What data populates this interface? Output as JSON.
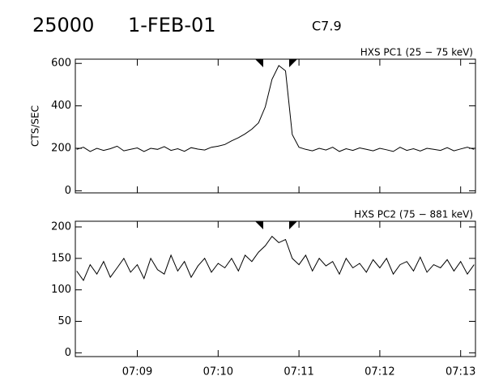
{
  "header": {
    "id": "25000",
    "date": "1-FEB-01",
    "class": "C7.9"
  },
  "chart_data": [
    {
      "type": "line",
      "title": "HXS PC1 (25 − 75 keV)",
      "y_label": "CTS/SEC",
      "color": "#000000",
      "x": [
        "07:08:15",
        "07:08:20",
        "07:08:25",
        "07:08:30",
        "07:08:35",
        "07:08:40",
        "07:08:45",
        "07:08:50",
        "07:08:55",
        "07:09:00",
        "07:09:05",
        "07:09:10",
        "07:09:15",
        "07:09:20",
        "07:09:25",
        "07:09:30",
        "07:09:35",
        "07:09:40",
        "07:09:45",
        "07:09:50",
        "07:09:55",
        "07:10:00",
        "07:10:05",
        "07:10:10",
        "07:10:15",
        "07:10:20",
        "07:10:25",
        "07:10:30",
        "07:10:35",
        "07:10:40",
        "07:10:45",
        "07:10:50",
        "07:10:55",
        "07:11:00",
        "07:11:05",
        "07:11:10",
        "07:11:15",
        "07:11:20",
        "07:11:25",
        "07:11:30",
        "07:11:35",
        "07:11:40",
        "07:11:45",
        "07:11:50",
        "07:11:55",
        "07:12:00",
        "07:12:05",
        "07:12:10",
        "07:12:15",
        "07:12:20",
        "07:12:25",
        "07:12:30",
        "07:12:35",
        "07:12:40",
        "07:12:45",
        "07:12:50",
        "07:12:55",
        "07:13:00",
        "07:13:05",
        "07:13:10"
      ],
      "values": [
        195,
        205,
        185,
        200,
        190,
        198,
        210,
        188,
        195,
        202,
        185,
        200,
        195,
        208,
        190,
        198,
        186,
        203,
        196,
        192,
        205,
        210,
        218,
        235,
        250,
        268,
        290,
        320,
        395,
        525,
        590,
        565,
        265,
        205,
        195,
        188,
        200,
        192,
        205,
        185,
        198,
        190,
        202,
        195,
        188,
        200,
        193,
        185,
        205,
        190,
        198,
        187,
        200,
        195,
        190,
        203,
        188,
        197,
        205,
        195
      ],
      "xlim": [
        "07:08:14",
        "07:13:11"
      ],
      "xticks": [
        "07:09",
        "07:10",
        "07:11",
        "07:12",
        "07:13"
      ],
      "ylim": [
        -10,
        620
      ],
      "yticks": [
        0,
        200,
        400,
        600
      ]
    },
    {
      "type": "line",
      "title": "HXS PC2 (75 − 881 keV)",
      "color": "#000000",
      "x": [
        "07:08:15",
        "07:08:20",
        "07:08:25",
        "07:08:30",
        "07:08:35",
        "07:08:40",
        "07:08:45",
        "07:08:50",
        "07:08:55",
        "07:09:00",
        "07:09:05",
        "07:09:10",
        "07:09:15",
        "07:09:20",
        "07:09:25",
        "07:09:30",
        "07:09:35",
        "07:09:40",
        "07:09:45",
        "07:09:50",
        "07:09:55",
        "07:10:00",
        "07:10:05",
        "07:10:10",
        "07:10:15",
        "07:10:20",
        "07:10:25",
        "07:10:30",
        "07:10:35",
        "07:10:40",
        "07:10:45",
        "07:10:50",
        "07:10:55",
        "07:11:00",
        "07:11:05",
        "07:11:10",
        "07:11:15",
        "07:11:20",
        "07:11:25",
        "07:11:30",
        "07:11:35",
        "07:11:40",
        "07:11:45",
        "07:11:50",
        "07:11:55",
        "07:12:00",
        "07:12:05",
        "07:12:10",
        "07:12:15",
        "07:12:20",
        "07:12:25",
        "07:12:30",
        "07:12:35",
        "07:12:40",
        "07:12:45",
        "07:12:50",
        "07:12:55",
        "07:13:00",
        "07:13:05",
        "07:13:10"
      ],
      "values": [
        130,
        115,
        140,
        125,
        145,
        120,
        135,
        150,
        128,
        140,
        118,
        150,
        132,
        125,
        155,
        130,
        145,
        120,
        138,
        150,
        128,
        142,
        135,
        150,
        130,
        155,
        145,
        160,
        170,
        185,
        175,
        180,
        150,
        140,
        155,
        130,
        150,
        138,
        145,
        125,
        150,
        135,
        142,
        128,
        148,
        135,
        150,
        125,
        140,
        145,
        130,
        152,
        128,
        140,
        135,
        148,
        130,
        145,
        125,
        140
      ],
      "xlim": [
        "07:08:14",
        "07:13:11"
      ],
      "xticks": [
        "07:09",
        "07:10",
        "07:11",
        "07:12",
        "07:13"
      ],
      "ylim": [
        -6,
        209
      ],
      "yticks": [
        0,
        50,
        100,
        150,
        200
      ]
    }
  ]
}
